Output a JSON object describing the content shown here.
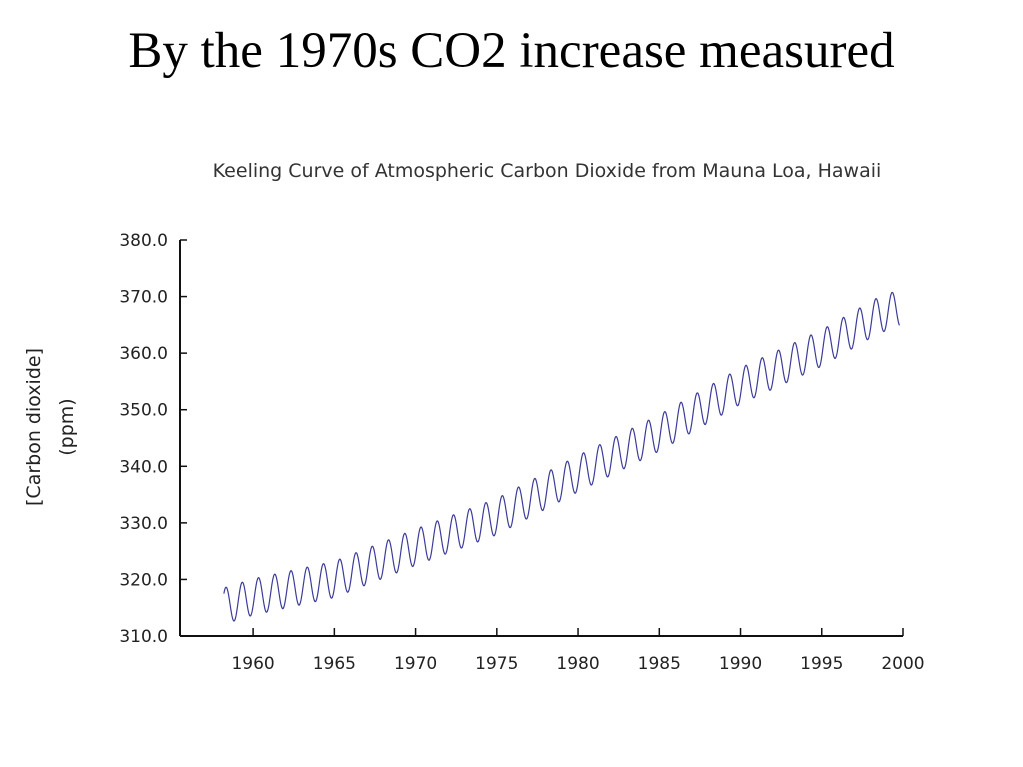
{
  "slide": {
    "title": "By the 1970s CO2 increase measured"
  },
  "chart_data": {
    "type": "line",
    "title": "Keeling Curve of Atmospheric Carbon Dioxide from Mauna Loa, Hawaii",
    "xlabel": "",
    "ylabel_lines": [
      "[Carbon dioxide]",
      "(ppm)"
    ],
    "xlim": [
      1955.5,
      2000
    ],
    "ylim": [
      310,
      380
    ],
    "x_ticks": [
      1960,
      1965,
      1970,
      1975,
      1980,
      1985,
      1990,
      1995,
      2000
    ],
    "y_ticks": [
      310,
      320,
      330,
      340,
      350,
      360,
      370,
      380
    ],
    "y_tick_labels": [
      "310.0",
      "320.0",
      "330.0",
      "340.0",
      "350.0",
      "360.0",
      "370.0",
      "380.0"
    ],
    "x_tick_labels": [
      "1960",
      "1965",
      "1970",
      "1975",
      "1980",
      "1985",
      "1990",
      "1995",
      "2000"
    ],
    "grid": false,
    "line_color": "#3b3b9a",
    "series": [
      {
        "trend_points": [
          [
            1958.2,
            315.3
          ],
          [
            1960,
            316.9
          ],
          [
            1965,
            320.0
          ],
          [
            1970,
            325.7
          ],
          [
            1975,
            331.1
          ],
          [
            1980,
            338.7
          ],
          [
            1985,
            345.9
          ],
          [
            1990,
            354.2
          ],
          [
            1995,
            360.9
          ],
          [
            1998.5,
            366.7
          ],
          [
            1999.8,
            368.0
          ]
        ],
        "seasonal_amplitude_ppm": 3.2,
        "season_peak_fraction": 0.33,
        "x_start": 1958.2,
        "x_end": 1999.8
      }
    ]
  }
}
